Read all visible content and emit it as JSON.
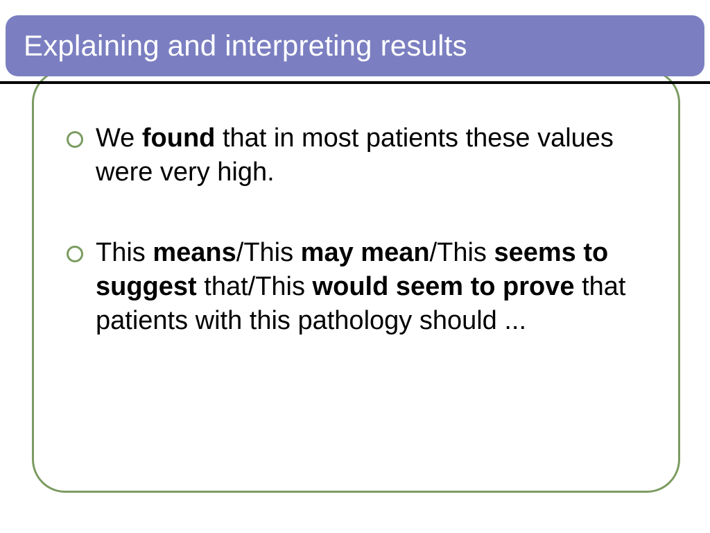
{
  "slide": {
    "title": "Explaining and interpreting results",
    "title_bg": "#7b7fc1",
    "title_color": "#ffffff",
    "title_fontsize": 42,
    "underline_color": "#000000",
    "frame_border_color": "#7b9b61",
    "bullet_ring_color": "#7b9b61",
    "body_fontsize": 38,
    "bullets": [
      {
        "segments": [
          {
            "text": "We ",
            "bold": false
          },
          {
            "text": "found",
            "bold": true
          },
          {
            "text": " that in most patients these values were very high.",
            "bold": false
          }
        ]
      },
      {
        "segments": [
          {
            "text": "This ",
            "bold": false
          },
          {
            "text": "means",
            "bold": true
          },
          {
            "text": "/This ",
            "bold": false
          },
          {
            "text": "may mean",
            "bold": true
          },
          {
            "text": "/This ",
            "bold": false
          },
          {
            "text": "seems to suggest",
            "bold": true
          },
          {
            "text": " that/This ",
            "bold": false
          },
          {
            "text": "would seem to prove",
            "bold": true
          },
          {
            "text": " that patients with this pathology should ...",
            "bold": false
          }
        ]
      }
    ]
  }
}
